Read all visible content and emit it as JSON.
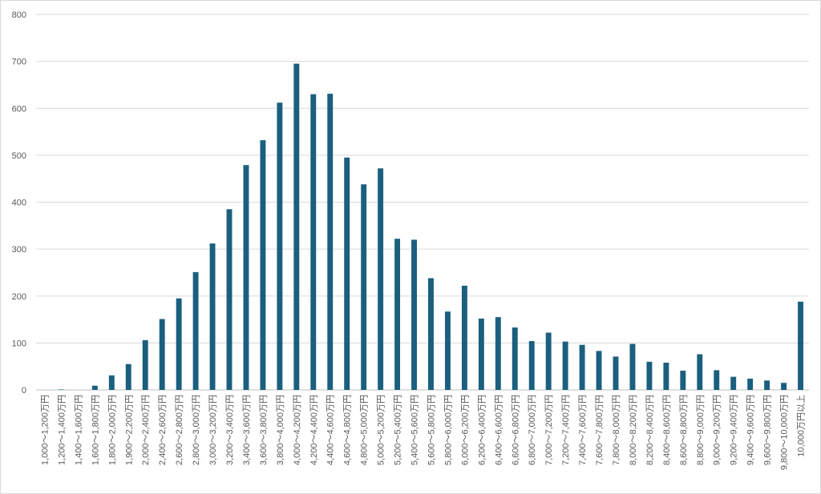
{
  "chart_data": {
    "type": "bar",
    "title": "",
    "xlabel": "",
    "ylabel": "",
    "ylim": [
      0,
      800
    ],
    "yticks": [
      0,
      100,
      200,
      300,
      400,
      500,
      600,
      700,
      800
    ],
    "grid": true,
    "legend": "none",
    "bar_color": "#1b5f7e",
    "categories": [
      "1,000～1,200万円",
      "1,200～1,400万円",
      "1,400～1,600万円",
      "1,600～1,800万円",
      "1,800～2,000万円",
      "1,900～2,200万円",
      "2,000～2,400万円",
      "2,400～2,600万円",
      "2,600～2,800万円",
      "2,800～3,000万円",
      "3,000～3,200万円",
      "3,200～3,400万円",
      "3,400～3,600万円",
      "3,600～3,800万円",
      "3,800～4,000万円",
      "4,000～4,200万円",
      "4,200～4,400万円",
      "4,400～4,600万円",
      "4,600～4,800万円",
      "4,800～5,000万円",
      "5,000～5,200万円",
      "5,200～5,400万円",
      "5,400～5,600万円",
      "5,600～5,800万円",
      "5,800～6,000万円",
      "6,000～6,200万円",
      "6,200～6,400万円",
      "6,400～6,600万円",
      "6,600～6,800万円",
      "6,800～7,000万円",
      "7,000～7,200万円",
      "7,200～7,400万円",
      "7,400～7,600万円",
      "7,600～7,800万円",
      "7,800～8,000万円",
      "8,000～8,200万円",
      "8,200～8,400万円",
      "8,400～8,600万円",
      "8,600～8,800万円",
      "8,800～9,000万円",
      "9,000～9,200万円",
      "9,200～9,400万円",
      "9,400～9,600万円",
      "9,600～9,800万円",
      "9,800～10,000万円",
      "10,000万円以上"
    ],
    "values": [
      0,
      1,
      0,
      9,
      31,
      55,
      106,
      151,
      195,
      251,
      312,
      385,
      479,
      532,
      612,
      695,
      630,
      631,
      495,
      438,
      472,
      322,
      320,
      238,
      167,
      222,
      152,
      155,
      133,
      104,
      122,
      103,
      96,
      83,
      71,
      98,
      60,
      58,
      41,
      76,
      42,
      28,
      24,
      20,
      15,
      188
    ]
  }
}
